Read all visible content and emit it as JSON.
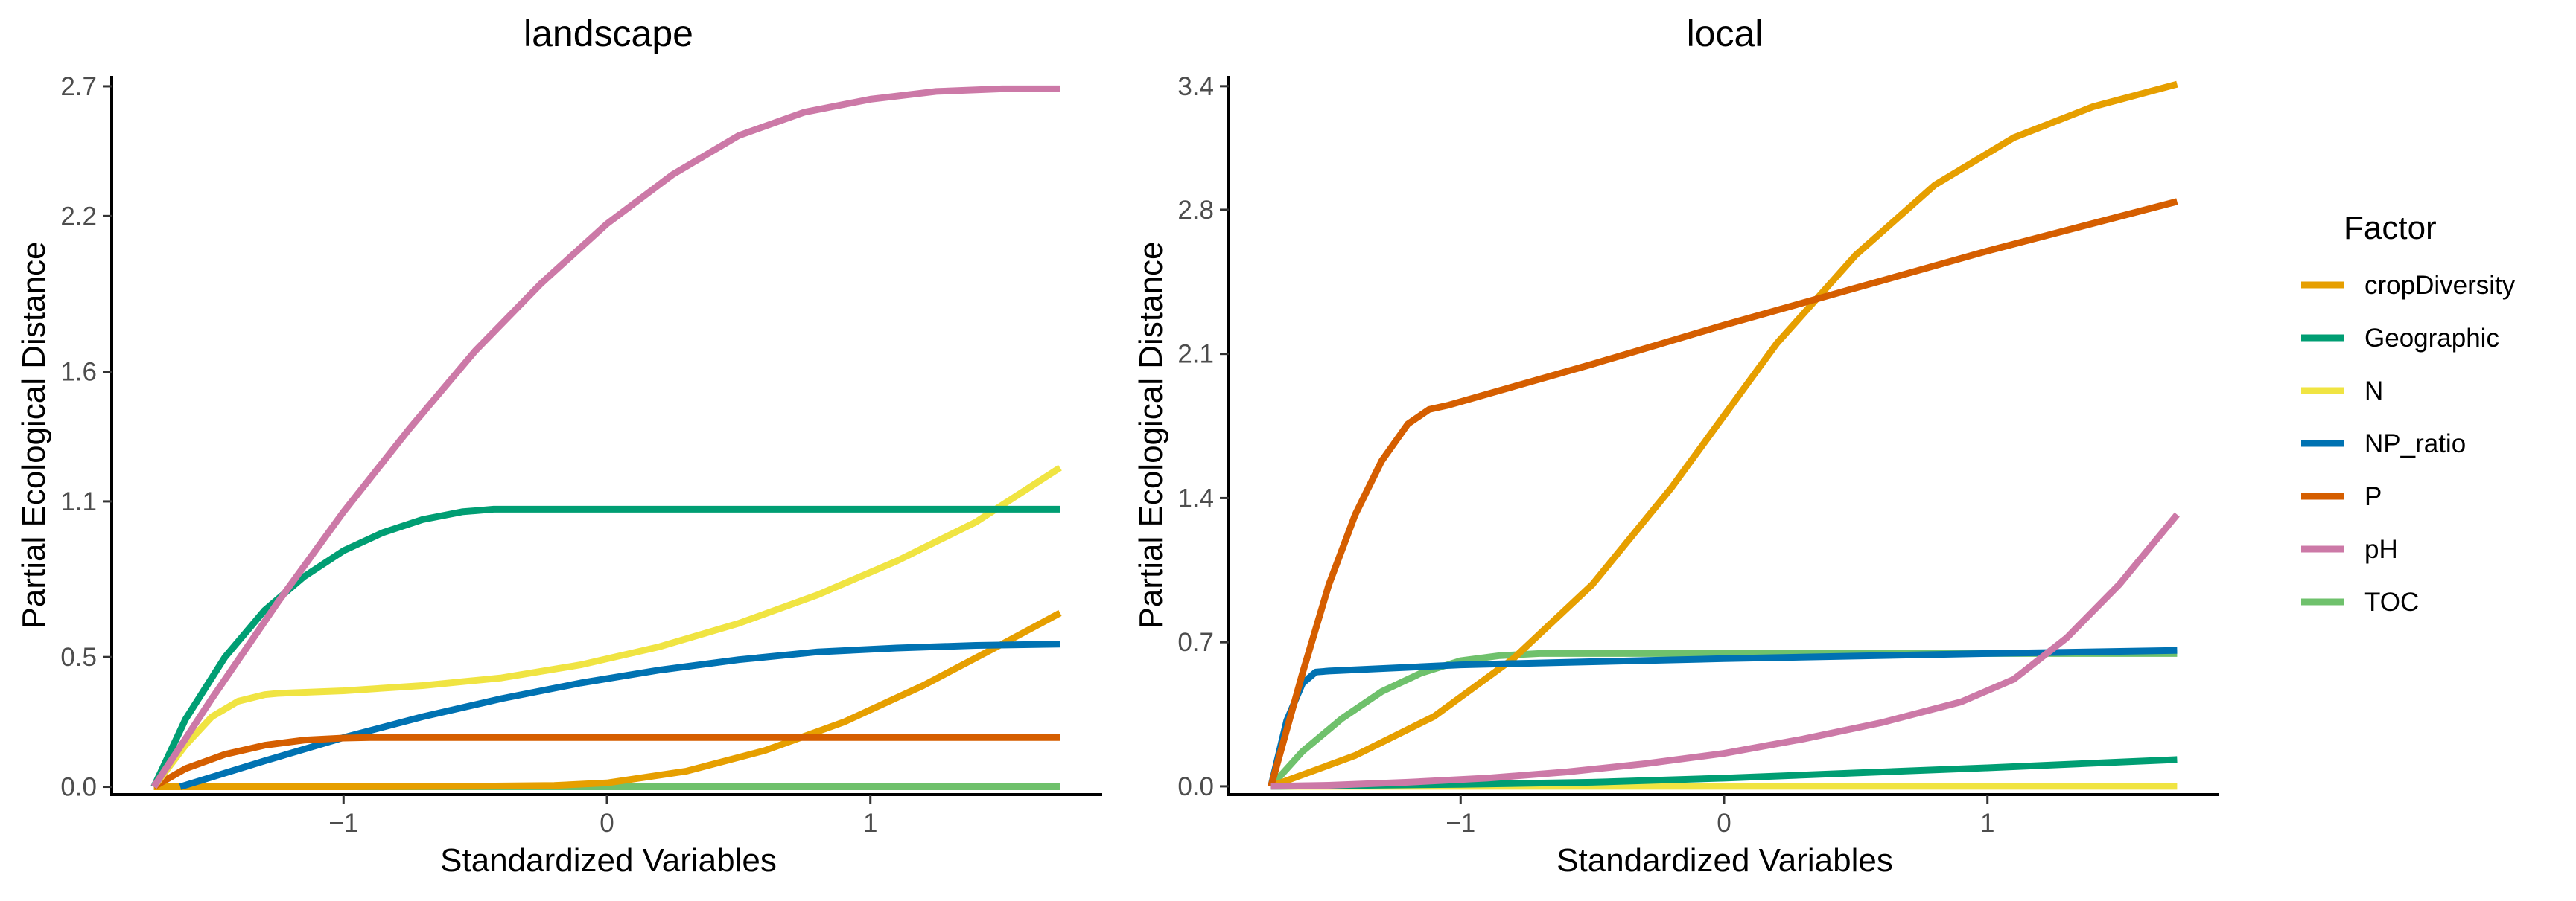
{
  "legend": {
    "title": "Factor",
    "entries": [
      {
        "name": "cropDiversity",
        "color": "#E69F00"
      },
      {
        "name": "Geographic",
        "color": "#009E73"
      },
      {
        "name": "N",
        "color": "#F0E442"
      },
      {
        "name": "NP_ratio",
        "color": "#0072B2"
      },
      {
        "name": "P",
        "color": "#D55E00"
      },
      {
        "name": "pH",
        "color": "#CC79A7"
      },
      {
        "name": "TOC",
        "color": "#6FC16C"
      }
    ]
  },
  "chart_data": [
    {
      "type": "line",
      "title": "landscape",
      "xlabel": "Standardized Variables",
      "ylabel": "Partial Ecological Distance",
      "xlim": [
        -1.88,
        1.88
      ],
      "ylim": [
        -0.03,
        2.74
      ],
      "xticks": [
        -1,
        0,
        1
      ],
      "xtick_labels": [
        "−1",
        "0",
        "1"
      ],
      "yticks": [
        0.0,
        0.5,
        1.1,
        1.6,
        2.2,
        2.7
      ],
      "ytick_labels": [
        "0.0",
        "0.5",
        "1.1",
        "1.6",
        "2.2",
        "2.7"
      ],
      "series": [
        {
          "name": "cropDiversity",
          "color": "#E69F00",
          "x": [
            -1.72,
            -1.0,
            -0.5,
            -0.2,
            0.0,
            0.3,
            0.6,
            0.9,
            1.2,
            1.5,
            1.72
          ],
          "y": [
            0.0,
            0.0,
            0.002,
            0.005,
            0.015,
            0.06,
            0.14,
            0.25,
            0.39,
            0.55,
            0.67
          ]
        },
        {
          "name": "Geographic",
          "color": "#009E73",
          "x": [
            -1.72,
            -1.6,
            -1.45,
            -1.3,
            -1.15,
            -1.0,
            -0.85,
            -0.7,
            -0.55,
            -0.43,
            0.0,
            0.5,
            1.0,
            1.72
          ],
          "y": [
            0.0,
            0.26,
            0.5,
            0.68,
            0.81,
            0.91,
            0.98,
            1.03,
            1.06,
            1.07,
            1.07,
            1.07,
            1.07,
            1.07
          ]
        },
        {
          "name": "N",
          "color": "#F0E442",
          "x": [
            -1.72,
            -1.6,
            -1.5,
            -1.4,
            -1.3,
            -1.25,
            -1.0,
            -0.7,
            -0.4,
            -0.1,
            0.2,
            0.5,
            0.8,
            1.1,
            1.4,
            1.72
          ],
          "y": [
            0.0,
            0.16,
            0.27,
            0.33,
            0.355,
            0.36,
            0.37,
            0.39,
            0.42,
            0.47,
            0.54,
            0.63,
            0.74,
            0.87,
            1.02,
            1.23
          ]
        },
        {
          "name": "NP_ratio",
          "color": "#0072B2",
          "x": [
            -1.62,
            -1.3,
            -1.0,
            -0.7,
            -0.4,
            -0.1,
            0.2,
            0.5,
            0.8,
            1.1,
            1.4,
            1.72
          ],
          "y": [
            0.0,
            0.1,
            0.19,
            0.27,
            0.34,
            0.4,
            0.45,
            0.49,
            0.52,
            0.535,
            0.545,
            0.55
          ]
        },
        {
          "name": "P",
          "color": "#D55E00",
          "x": [
            -1.72,
            -1.6,
            -1.45,
            -1.3,
            -1.15,
            -1.0,
            -0.9,
            0.0,
            1.0,
            1.72
          ],
          "y": [
            0.0,
            0.07,
            0.125,
            0.16,
            0.18,
            0.188,
            0.19,
            0.19,
            0.19,
            0.19
          ]
        },
        {
          "name": "pH",
          "color": "#CC79A7",
          "x": [
            -1.72,
            -1.5,
            -1.25,
            -1.0,
            -0.75,
            -0.5,
            -0.25,
            0.0,
            0.25,
            0.5,
            0.75,
            1.0,
            1.25,
            1.5,
            1.72
          ],
          "y": [
            0.0,
            0.34,
            0.71,
            1.06,
            1.38,
            1.68,
            1.94,
            2.17,
            2.36,
            2.51,
            2.6,
            2.65,
            2.68,
            2.69,
            2.69
          ]
        },
        {
          "name": "TOC",
          "color": "#6FC16C",
          "x": [
            -1.72,
            -1.0,
            0.0,
            1.0,
            1.72
          ],
          "y": [
            0.0,
            0.0,
            0.0,
            0.0,
            0.0
          ]
        }
      ]
    },
    {
      "type": "line",
      "title": "local",
      "xlabel": "Standardized Variables",
      "ylabel": "Partial Ecological Distance",
      "xlim": [
        -1.88,
        1.88
      ],
      "ylim": [
        -0.04,
        3.45
      ],
      "xticks": [
        -1,
        0,
        1
      ],
      "xtick_labels": [
        "−1",
        "0",
        "1"
      ],
      "yticks": [
        0.0,
        0.7,
        1.4,
        2.1,
        2.8,
        3.4
      ],
      "ytick_labels": [
        "0.0",
        "0.7",
        "1.4",
        "2.1",
        "2.8",
        "3.4"
      ],
      "series": [
        {
          "name": "cropDiversity",
          "color": "#E69F00",
          "x": [
            -1.72,
            -1.4,
            -1.1,
            -0.8,
            -0.5,
            -0.2,
            0.0,
            0.2,
            0.5,
            0.8,
            1.1,
            1.4,
            1.72
          ],
          "y": [
            0.0,
            0.15,
            0.34,
            0.62,
            0.98,
            1.45,
            1.8,
            2.15,
            2.58,
            2.92,
            3.15,
            3.3,
            3.41
          ]
        },
        {
          "name": "Geographic",
          "color": "#009E73",
          "x": [
            -1.72,
            -1.0,
            -0.5,
            0.0,
            0.5,
            1.0,
            1.72
          ],
          "y": [
            0.0,
            0.01,
            0.02,
            0.04,
            0.065,
            0.09,
            0.13
          ]
        },
        {
          "name": "N",
          "color": "#F0E442",
          "x": [
            -1.72,
            -1.0,
            0.0,
            1.0,
            1.72
          ],
          "y": [
            0.0,
            0.0,
            0.0,
            0.0,
            0.0
          ]
        },
        {
          "name": "NP_ratio",
          "color": "#0072B2",
          "x": [
            -1.72,
            -1.66,
            -1.6,
            -1.55,
            -1.5,
            -1.0,
            0.0,
            1.0,
            1.72
          ],
          "y": [
            0.0,
            0.32,
            0.5,
            0.555,
            0.56,
            0.59,
            0.62,
            0.645,
            0.66
          ]
        },
        {
          "name": "P",
          "color": "#D55E00",
          "x": [
            -1.72,
            -1.6,
            -1.5,
            -1.4,
            -1.3,
            -1.2,
            -1.12,
            -1.05,
            -0.5,
            0.0,
            0.5,
            1.0,
            1.72
          ],
          "y": [
            0.0,
            0.55,
            0.98,
            1.32,
            1.58,
            1.76,
            1.83,
            1.85,
            2.05,
            2.24,
            2.42,
            2.6,
            2.84
          ]
        },
        {
          "name": "pH",
          "color": "#CC79A7",
          "x": [
            -1.72,
            -1.5,
            -1.2,
            -0.9,
            -0.6,
            -0.3,
            0.0,
            0.3,
            0.6,
            0.9,
            1.1,
            1.3,
            1.5,
            1.72
          ],
          "y": [
            0.0,
            0.005,
            0.02,
            0.04,
            0.07,
            0.11,
            0.16,
            0.23,
            0.31,
            0.41,
            0.52,
            0.72,
            0.98,
            1.32
          ]
        },
        {
          "name": "TOC",
          "color": "#6FC16C",
          "x": [
            -1.72,
            -1.6,
            -1.45,
            -1.3,
            -1.15,
            -1.0,
            -0.85,
            -0.7,
            0.0,
            1.0,
            1.72
          ],
          "y": [
            0.0,
            0.17,
            0.33,
            0.46,
            0.55,
            0.61,
            0.635,
            0.645,
            0.645,
            0.645,
            0.645
          ]
        }
      ]
    }
  ]
}
